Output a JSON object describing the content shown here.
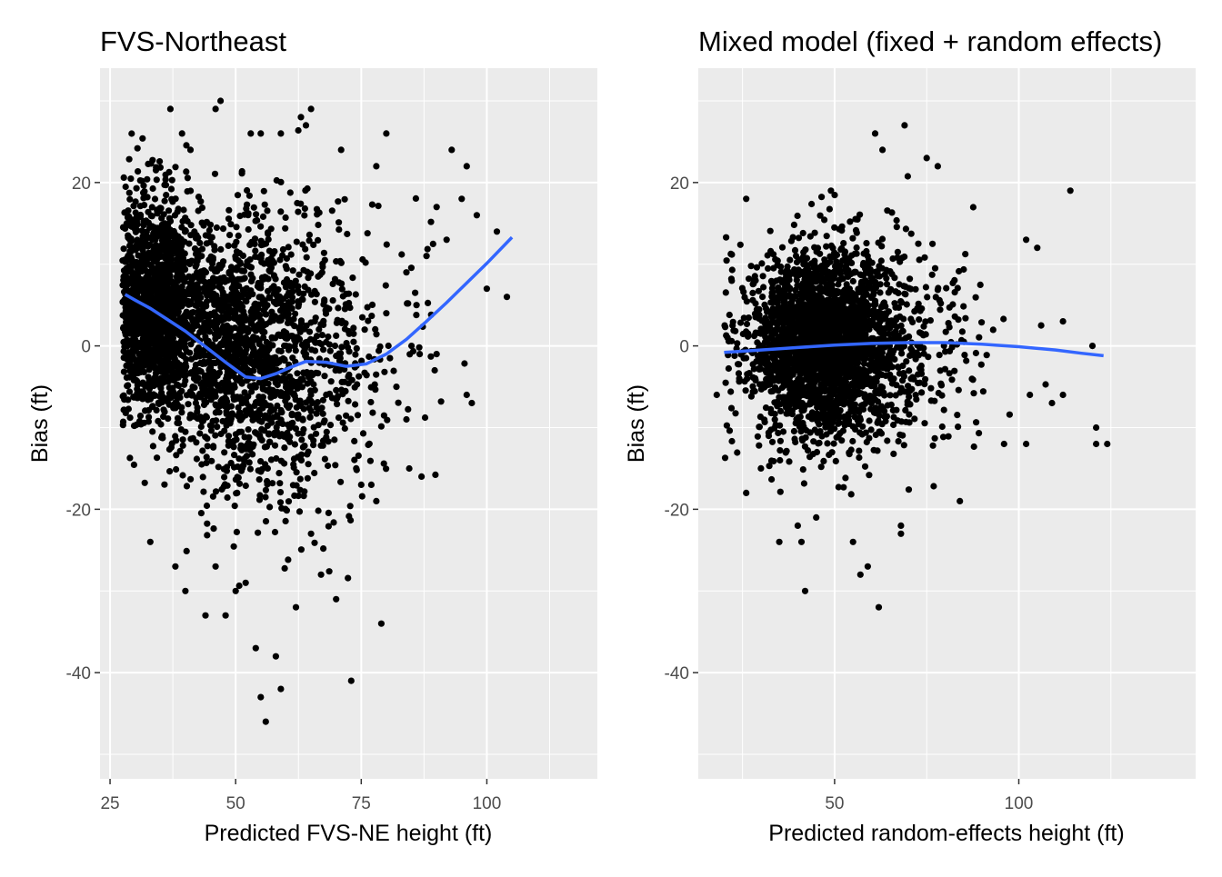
{
  "chart_data": [
    {
      "type": "scatter",
      "title": "FVS-Northeast",
      "xlabel": "Predicted FVS-NE height (ft)",
      "ylabel": "Bias (ft)",
      "xlim": [
        23,
        122
      ],
      "ylim": [
        -53,
        34
      ],
      "x_ticks": [
        25,
        50,
        75,
        100
      ],
      "x_tick_labels": [
        "25",
        "50",
        "75",
        "100"
      ],
      "y_ticks": [
        -40,
        -20,
        0,
        20
      ],
      "y_tick_labels": [
        "-40",
        "-20",
        "0",
        "20"
      ],
      "grid": true,
      "point_color": "#000000",
      "smooth_color": "#3366ff",
      "background": "#ebebeb",
      "cloud": [
        {
          "cx": 34,
          "cy": 5,
          "sx": 4.5,
          "sy": 7,
          "n": 1400,
          "xmin": 27.5
        },
        {
          "cx": 48,
          "cy": 0,
          "sx": 6,
          "sy": 8,
          "n": 900,
          "xmin": 27.5
        },
        {
          "cx": 58,
          "cy": -2,
          "sx": 6,
          "sy": 9,
          "n": 550,
          "xmin": 27.5
        },
        {
          "cx": 70,
          "cy": -2,
          "sx": 5,
          "sy": 8,
          "n": 180,
          "xmin": 27.5
        },
        {
          "cx": 82,
          "cy": 0,
          "sx": 6,
          "sy": 9,
          "n": 45,
          "xmin": 27.5
        }
      ],
      "points": [
        [
          37,
          29
        ],
        [
          41,
          24
        ],
        [
          46,
          29
        ],
        [
          47,
          30
        ],
        [
          53,
          26
        ],
        [
          55,
          26
        ],
        [
          59,
          26
        ],
        [
          63,
          28
        ],
        [
          64,
          27
        ],
        [
          65,
          29
        ],
        [
          71,
          24
        ],
        [
          78,
          22
        ],
        [
          80,
          26
        ],
        [
          93,
          24
        ],
        [
          96,
          22
        ],
        [
          95,
          18
        ],
        [
          98,
          16
        ],
        [
          102,
          14
        ],
        [
          104,
          6
        ],
        [
          96,
          -6
        ],
        [
          97,
          -7
        ],
        [
          79,
          -34
        ],
        [
          73,
          -41
        ],
        [
          54,
          -37
        ],
        [
          55,
          -43
        ],
        [
          59,
          -42
        ],
        [
          56,
          -46
        ],
        [
          58,
          -38
        ],
        [
          48,
          -33
        ],
        [
          44,
          -33
        ],
        [
          50,
          -30
        ],
        [
          52,
          -29
        ],
        [
          46,
          -27
        ],
        [
          38,
          -27
        ],
        [
          33,
          -24
        ],
        [
          40,
          -30
        ],
        [
          67,
          -28
        ],
        [
          70,
          -31
        ],
        [
          62,
          -32
        ],
        [
          65,
          -23
        ],
        [
          87,
          -16
        ],
        [
          84,
          -9
        ],
        [
          90,
          -1
        ],
        [
          85,
          0
        ],
        [
          100,
          7
        ],
        [
          92,
          13
        ],
        [
          88,
          11
        ],
        [
          90,
          17
        ],
        [
          84,
          9
        ],
        [
          86,
          5
        ],
        [
          77,
          -17
        ],
        [
          78,
          -19
        ],
        [
          74,
          -15
        ],
        [
          75,
          -17
        ],
        [
          80,
          4
        ],
        [
          82,
          -5
        ]
      ],
      "smooth_x": [
        28,
        30,
        33,
        36,
        40,
        44,
        48,
        52,
        55,
        58,
        61,
        64,
        68,
        72,
        76,
        80,
        84,
        88,
        92,
        96,
        100,
        105
      ],
      "smooth_y": [
        6.3,
        5.6,
        4.6,
        3.4,
        1.8,
        -0.1,
        -2.0,
        -3.8,
        -4.0,
        -3.4,
        -2.6,
        -1.9,
        -2.0,
        -2.5,
        -2.2,
        -1.0,
        0.8,
        3.0,
        5.3,
        7.7,
        10.1,
        13.3
      ]
    },
    {
      "type": "scatter",
      "title": "Mixed model (fixed + random effects)",
      "xlabel": "Predicted random-effects height (ft)",
      "ylabel": "Bias (ft)",
      "xlim": [
        13,
        148
      ],
      "ylim": [
        -53,
        34
      ],
      "x_ticks": [
        50,
        100
      ],
      "x_tick_labels": [
        "50",
        "100"
      ],
      "y_ticks": [
        -40,
        -20,
        0,
        20
      ],
      "y_tick_labels": [
        "-40",
        "-20",
        "0",
        "20"
      ],
      "grid": true,
      "point_color": "#000000",
      "smooth_color": "#3366ff",
      "background": "#ebebeb",
      "cloud": [
        {
          "cx": 45,
          "cy": 0.5,
          "sx": 9,
          "sy": 5.5,
          "n": 2200,
          "xmin": 20
        },
        {
          "cx": 60,
          "cy": 0,
          "sx": 10,
          "sy": 6,
          "n": 500,
          "xmin": 20
        },
        {
          "cx": 82,
          "cy": 0,
          "sx": 9,
          "sy": 6,
          "n": 70,
          "xmin": 20
        }
      ],
      "points": [
        [
          61,
          26
        ],
        [
          69,
          27
        ],
        [
          63,
          24
        ],
        [
          75,
          23
        ],
        [
          78,
          22
        ],
        [
          26,
          18
        ],
        [
          49,
          19
        ],
        [
          114,
          19
        ],
        [
          102,
          13
        ],
        [
          105,
          12
        ],
        [
          112,
          3
        ],
        [
          120,
          0
        ],
        [
          121,
          -10
        ],
        [
          124,
          -12
        ],
        [
          121,
          -12
        ],
        [
          109,
          -7
        ],
        [
          112,
          -6
        ],
        [
          103,
          -6
        ],
        [
          96,
          -12
        ],
        [
          102,
          -12
        ],
        [
          42,
          -30
        ],
        [
          62,
          -32
        ],
        [
          57,
          -28
        ],
        [
          59,
          -27
        ],
        [
          35,
          -24
        ],
        [
          41,
          -24
        ],
        [
          40,
          -22
        ],
        [
          45,
          -21
        ],
        [
          55,
          -24
        ],
        [
          68,
          -22
        ],
        [
          68,
          -23
        ],
        [
          84,
          -19
        ],
        [
          26,
          -18
        ],
        [
          30,
          -15
        ],
        [
          18,
          -6
        ]
      ],
      "smooth_x": [
        20,
        30,
        40,
        50,
        60,
        70,
        80,
        90,
        100,
        110,
        117,
        123
      ],
      "smooth_y": [
        -0.8,
        -0.5,
        -0.2,
        0.1,
        0.3,
        0.4,
        0.4,
        0.2,
        -0.1,
        -0.5,
        -0.9,
        -1.2
      ]
    }
  ]
}
